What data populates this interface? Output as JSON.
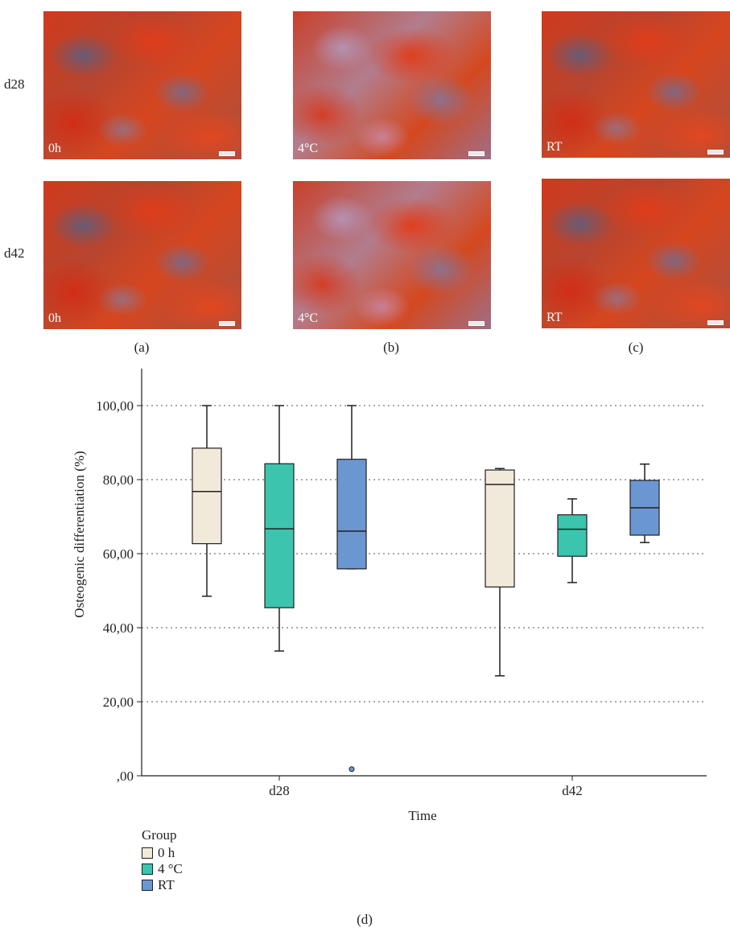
{
  "panels": {
    "rows": [
      "d28",
      "d42"
    ],
    "letters": [
      "(a)",
      "(b)",
      "(c)"
    ],
    "labels": [
      "0h",
      "4°C",
      "RT"
    ],
    "d_letter": "(d)"
  },
  "colors": {
    "0h": "#f1eada",
    "4C": "#3cc4ae",
    "RT": "#6a97d2",
    "grid": "#555555"
  },
  "legend": {
    "title": "Group",
    "items": [
      "0 h",
      "4 °C",
      "RT"
    ]
  },
  "chart_data": {
    "type": "boxplot",
    "xlabel": "Time",
    "ylabel": "Osteogenic differentiation (%)",
    "categories": [
      "d28",
      "d42"
    ],
    "ylim": [
      0,
      110
    ],
    "yticks": [
      0,
      20,
      40,
      60,
      80,
      100
    ],
    "ytick_labels": [
      ",00",
      "20,00",
      "40,00",
      "60,00",
      "80,00",
      "100,00"
    ],
    "grid": "horizontal dotted",
    "legend_position": "bottom-left",
    "series": [
      {
        "name": "0 h",
        "color_key": "0h",
        "boxes": [
          {
            "category": "d28",
            "min": 48.5,
            "q1": 62.7,
            "median": 76.8,
            "q3": 88.5,
            "max": 100
          },
          {
            "category": "d42",
            "min": 27,
            "q1": 51,
            "median": 78.7,
            "q3": 82.6,
            "max": 83
          }
        ]
      },
      {
        "name": "4 °C",
        "color_key": "4C",
        "boxes": [
          {
            "category": "d28",
            "min": 33.7,
            "q1": 45.4,
            "median": 66.7,
            "q3": 84.3,
            "max": 100
          },
          {
            "category": "d42",
            "min": 52.2,
            "q1": 59.3,
            "median": 66.6,
            "q3": 70.5,
            "max": 74.8
          }
        ]
      },
      {
        "name": "RT",
        "color_key": "RT",
        "boxes": [
          {
            "category": "d28",
            "min": 55.9,
            "q1": 55.9,
            "median": 66.1,
            "q3": 85.5,
            "max": 100,
            "outliers": [
              1.8
            ]
          },
          {
            "category": "d42",
            "min": 63,
            "q1": 65,
            "median": 72.4,
            "q3": 79.8,
            "max": 84.2
          }
        ]
      }
    ]
  }
}
